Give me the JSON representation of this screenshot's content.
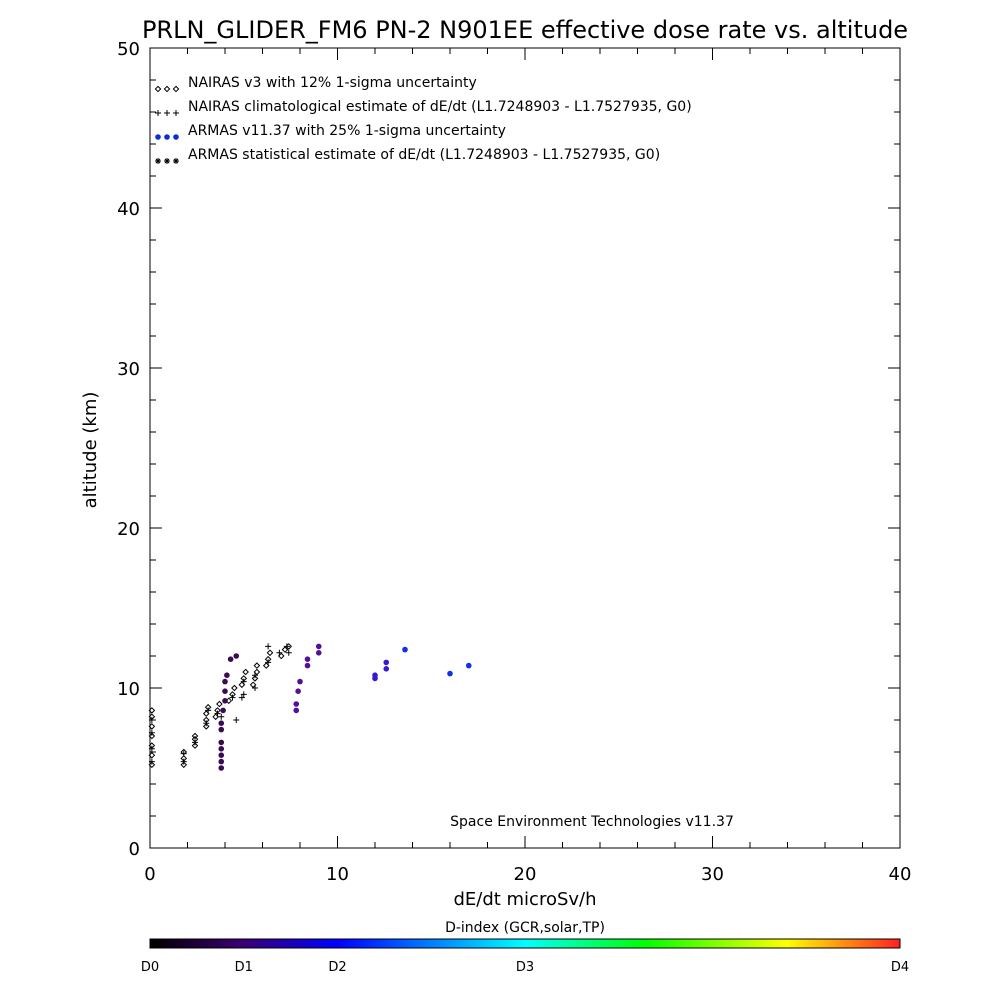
{
  "chart_data": {
    "type": "scatter",
    "title": "PRLN_GLIDER_FM6 PN-2 N901EE effective dose rate vs. altitude",
    "xlabel": "dE/dt microSv/h",
    "ylabel": "altitude (km)",
    "xlim": [
      0,
      40
    ],
    "ylim": [
      0,
      50
    ],
    "x_ticks": [
      "0",
      "10",
      "20",
      "30",
      "40"
    ],
    "y_ticks": [
      "0",
      "10",
      "20",
      "30",
      "40",
      "50"
    ],
    "grid": false,
    "legend_position": "top-left",
    "annotation": "Space Environment Technologies v11.37",
    "series": [
      {
        "name": "NAIRAS v3 with 12% 1-sigma uncertainty",
        "marker": "diamond",
        "color": "#000000",
        "points": [
          [
            0.1,
            5.2
          ],
          [
            0.1,
            5.8
          ],
          [
            0.1,
            6.4
          ],
          [
            0.1,
            7.0
          ],
          [
            0.1,
            7.6
          ],
          [
            0.1,
            8.2
          ],
          [
            0.1,
            8.6
          ],
          [
            1.8,
            5.2
          ],
          [
            1.8,
            5.6
          ],
          [
            1.8,
            6.0
          ],
          [
            2.4,
            6.4
          ],
          [
            2.4,
            6.8
          ],
          [
            2.4,
            7.0
          ],
          [
            3.0,
            7.6
          ],
          [
            3.0,
            8.0
          ],
          [
            3.0,
            8.4
          ],
          [
            3.1,
            8.8
          ],
          [
            3.5,
            8.2
          ],
          [
            3.6,
            8.6
          ],
          [
            3.7,
            9.0
          ],
          [
            4.2,
            9.2
          ],
          [
            4.4,
            9.6
          ],
          [
            4.5,
            10.0
          ],
          [
            4.9,
            10.2
          ],
          [
            5.0,
            10.6
          ],
          [
            5.1,
            11.0
          ],
          [
            5.5,
            10.2
          ],
          [
            5.6,
            10.6
          ],
          [
            5.7,
            11.0
          ],
          [
            5.7,
            11.4
          ],
          [
            6.2,
            11.4
          ],
          [
            6.3,
            11.8
          ],
          [
            6.4,
            12.2
          ],
          [
            7.0,
            12.0
          ],
          [
            7.2,
            12.4
          ],
          [
            7.4,
            12.6
          ]
        ]
      },
      {
        "name": "NAIRAS climatological estimate of dE/dt (L1.7248903 - L1.7527935, G0)",
        "marker": "plus",
        "color": "#000000",
        "points": [
          [
            0.1,
            5.4
          ],
          [
            0.1,
            6.2
          ],
          [
            0.1,
            7.2
          ],
          [
            0.1,
            8.0
          ],
          [
            1.8,
            5.4
          ],
          [
            1.8,
            5.9
          ],
          [
            2.4,
            6.6
          ],
          [
            3.0,
            7.8
          ],
          [
            3.1,
            8.6
          ],
          [
            3.6,
            8.4
          ],
          [
            3.8,
            8.2
          ],
          [
            4.4,
            9.4
          ],
          [
            4.6,
            8.0
          ],
          [
            4.9,
            9.4
          ],
          [
            5.0,
            10.4
          ],
          [
            5.0,
            9.6
          ],
          [
            5.6,
            10.8
          ],
          [
            5.6,
            10.0
          ],
          [
            6.3,
            11.6
          ],
          [
            6.3,
            12.6
          ],
          [
            6.9,
            12.2
          ],
          [
            7.3,
            12.6
          ],
          [
            7.4,
            12.2
          ]
        ]
      },
      {
        "name": "ARMAS v11.37 with 25% 1-sigma uncertainty",
        "marker": "filled-circle",
        "color": "#0a2fd6",
        "points": [
          [
            3.8,
            5.0
          ],
          [
            3.8,
            5.4
          ],
          [
            3.8,
            5.8
          ],
          [
            3.8,
            6.2
          ],
          [
            3.8,
            6.6
          ],
          [
            3.8,
            7.4
          ],
          [
            3.8,
            7.8
          ],
          [
            3.9,
            8.6
          ],
          [
            4.0,
            9.2
          ],
          [
            4.0,
            9.8
          ],
          [
            4.0,
            10.4
          ],
          [
            4.1,
            10.8
          ],
          [
            4.3,
            11.8
          ],
          [
            4.6,
            12.0
          ],
          [
            7.8,
            8.6
          ],
          [
            7.8,
            9.0
          ],
          [
            7.9,
            9.8
          ],
          [
            8.0,
            10.4
          ],
          [
            8.4,
            11.4
          ],
          [
            8.4,
            11.8
          ],
          [
            9.0,
            12.2
          ],
          [
            9.0,
            12.6
          ],
          [
            12.0,
            10.6
          ],
          [
            12.0,
            10.8
          ],
          [
            12.6,
            11.2
          ],
          [
            12.6,
            11.6
          ],
          [
            13.6,
            12.4
          ],
          [
            16.0,
            10.9
          ],
          [
            17.0,
            11.4
          ]
        ]
      },
      {
        "name": "ARMAS statistical estimate of dE/dt (L1.7248903 - L1.7527935, G0)",
        "marker": "asterisk",
        "color": "#000000",
        "points": []
      }
    ],
    "colorbar": {
      "label": "D-index (GCR,solar,TP)",
      "tick_labels": [
        "D0",
        "D1",
        "D2",
        "D3",
        "D4"
      ],
      "tick_values": [
        0,
        0.25,
        0.5,
        1,
        2
      ],
      "range": [
        0,
        2
      ],
      "colors": [
        "#000000",
        "#3a0070",
        "#0000ff",
        "#00ffff",
        "#00ff00",
        "#ffff00",
        "#ff2020"
      ]
    }
  }
}
